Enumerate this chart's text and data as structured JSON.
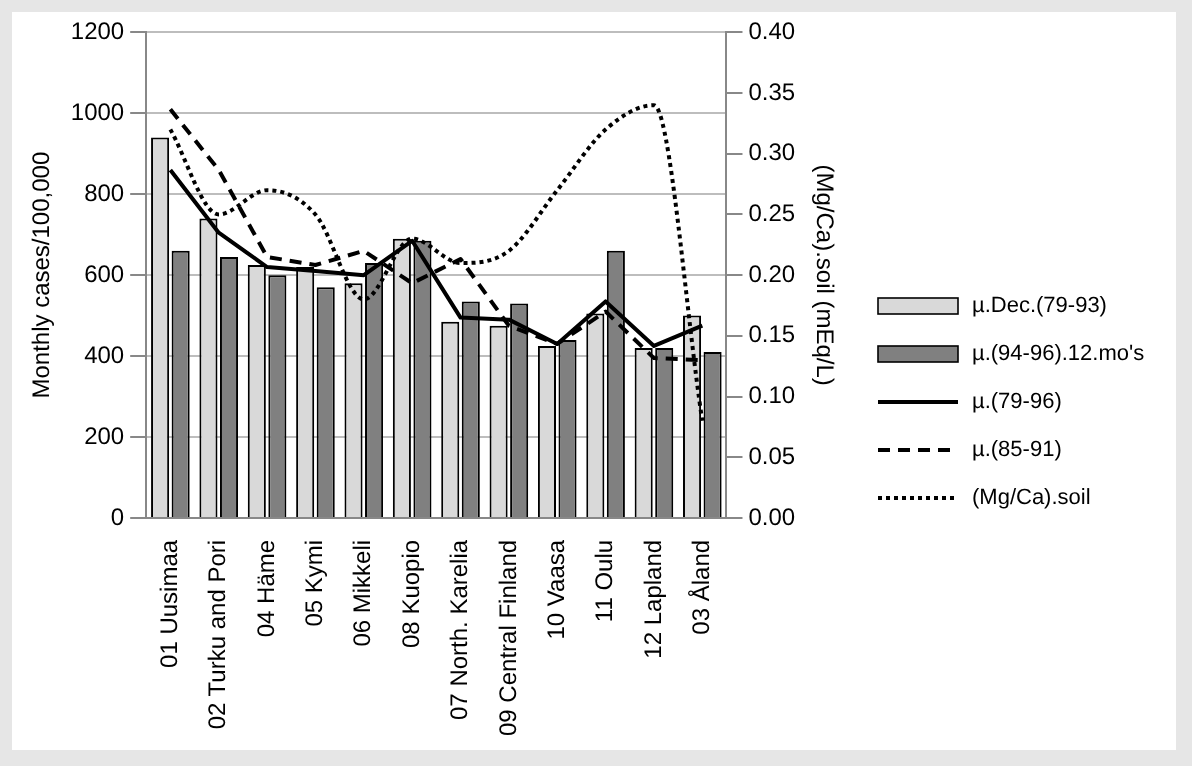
{
  "chart_data": {
    "type": "bar",
    "categories": [
      "01 Uusimaa",
      "02 Turku and Pori",
      "04 Häme",
      "05 Kymi",
      "06 Mikkeli",
      "08 Kuopio",
      "07 North. Karelia",
      "09 Central Finland",
      "10 Vaasa",
      "11 Oulu",
      "12 Lapland",
      "03 Åland"
    ],
    "series": [
      {
        "name": "µ.Dec.(79-93)",
        "color": "#d9d9d9",
        "values": [
          940,
          740,
          625,
          620,
          580,
          690,
          485,
          475,
          425,
          505,
          420,
          500
        ]
      },
      {
        "name": "µ.(94-96).12.mo's",
        "color": "#808080",
        "values": [
          660,
          645,
          600,
          570,
          630,
          685,
          535,
          530,
          440,
          660,
          420,
          410
        ]
      },
      {
        "name": "µ.(79-96)",
        "type": "line",
        "color": "#000000",
        "line_style": "solid",
        "values": [
          860,
          705,
          620,
          610,
          600,
          685,
          495,
          490,
          430,
          535,
          425,
          475
        ]
      },
      {
        "name": "µ.(85-91)",
        "type": "line",
        "color": "#000000",
        "line_style": "dashed",
        "values": [
          1010,
          860,
          645,
          625,
          660,
          580,
          640,
          475,
          430,
          510,
          395,
          390
        ]
      },
      {
        "name": "(Mg/Ca).soil",
        "type": "line",
        "color": "#000000",
        "line_style": "dotted",
        "axis": "y2",
        "values": [
          0.32,
          0.25,
          0.27,
          0.25,
          0.18,
          0.23,
          0.21,
          0.22,
          0.27,
          0.32,
          0.34,
          0.08
        ]
      }
    ],
    "ylabel": "Monthly cases/100,000",
    "y2label": "(Mg/Ca).soil (mEq/L)",
    "ylim": [
      0,
      1200
    ],
    "yticks": [
      0,
      200,
      400,
      600,
      800,
      1000,
      1200
    ],
    "y2lim": [
      0,
      0.4
    ],
    "y2ticks": [
      {
        "value": 0,
        "label": "0.00"
      },
      {
        "value": 0.05,
        "label": "0.05"
      },
      {
        "value": 0.1,
        "label": "0.10"
      },
      {
        "value": 0.15,
        "label": "0.15"
      },
      {
        "value": 0.2,
        "label": "0.20"
      },
      {
        "value": 0.25,
        "label": "0.25"
      },
      {
        "value": 0.3,
        "label": "0.30"
      },
      {
        "value": 0.35,
        "label": "0.35"
      },
      {
        "value": 0.4,
        "label": "0.40"
      }
    ],
    "grid": "y",
    "legend": "right",
    "marker": "none"
  }
}
